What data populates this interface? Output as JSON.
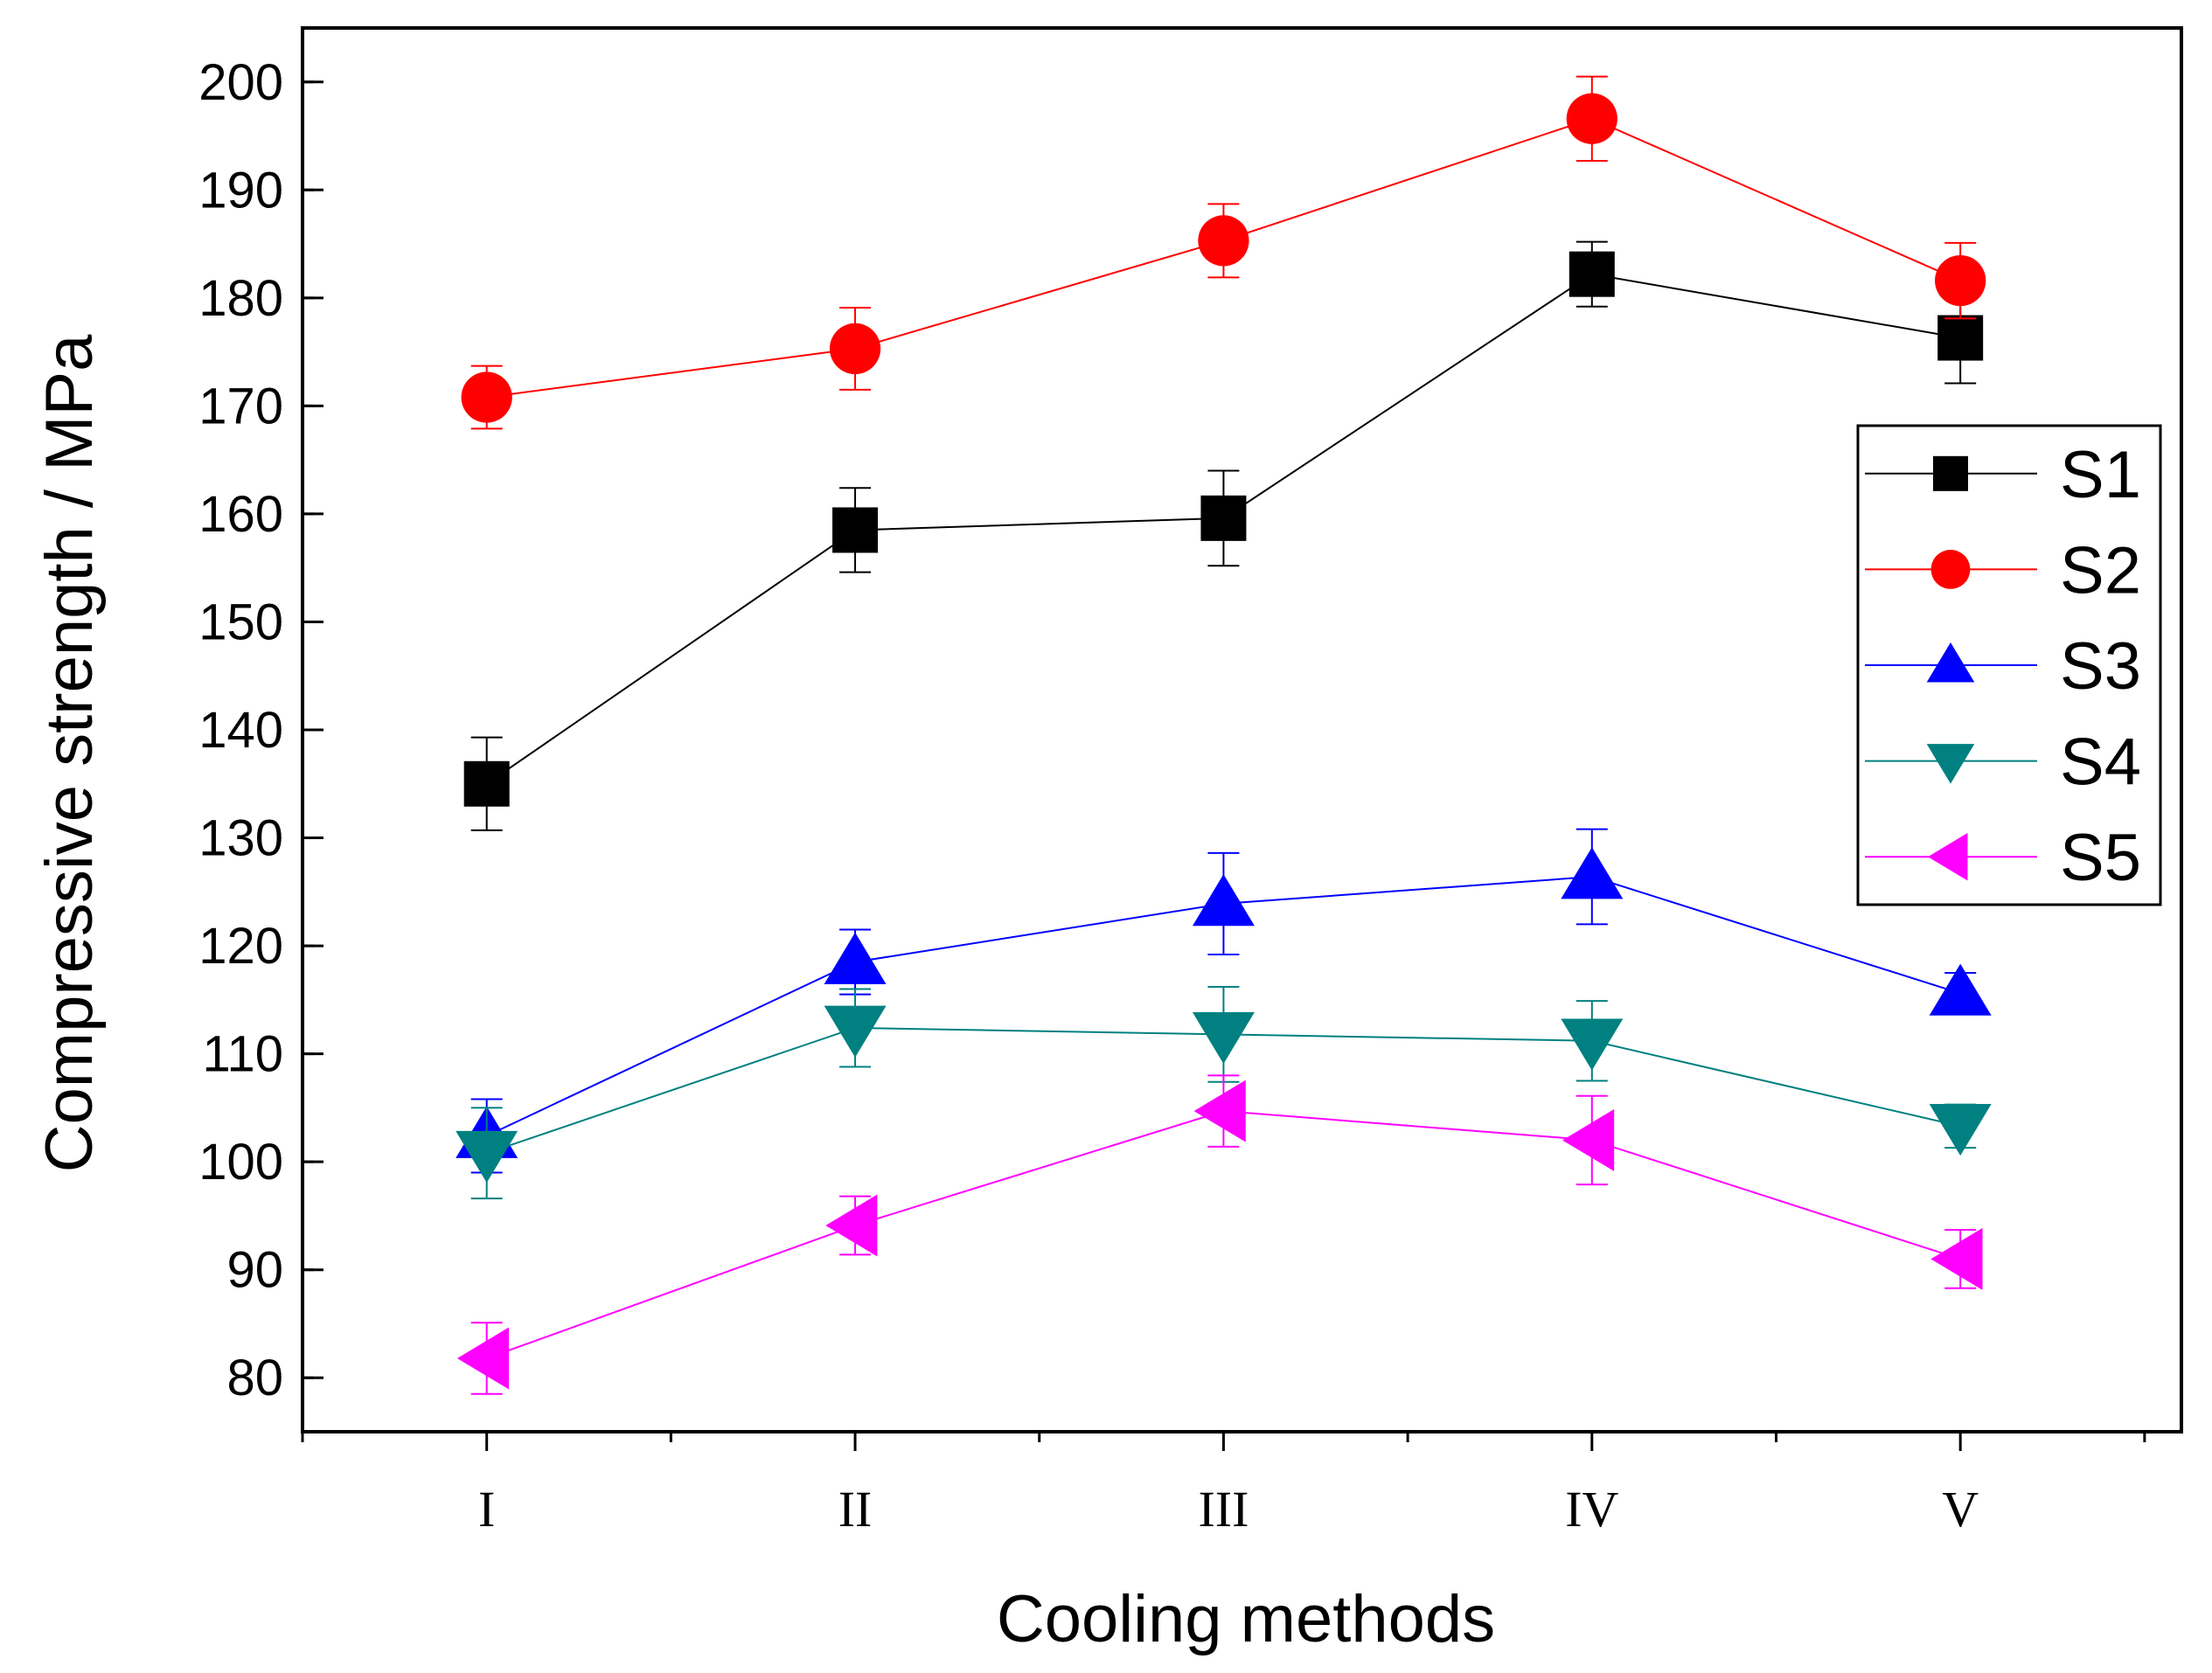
{
  "chart_data": {
    "type": "line",
    "title": "",
    "xlabel": "Cooling methods",
    "ylabel": "Compressive strength / MPa",
    "categories": [
      "I",
      "II",
      "III",
      "IV",
      "V"
    ],
    "ylim": [
      75,
      205
    ],
    "yticks": [
      80,
      90,
      100,
      110,
      120,
      130,
      140,
      150,
      160,
      170,
      180,
      190,
      200
    ],
    "grid": false,
    "legend_position": "right",
    "series": [
      {
        "name": "S1",
        "color": "#000000",
        "marker": "square",
        "values": [
          135.0,
          158.5,
          159.6,
          182.2,
          176.3
        ],
        "errors": [
          4.3,
          3.9,
          4.4,
          3.0,
          4.2
        ]
      },
      {
        "name": "S2",
        "color": "#ff0000",
        "marker": "circle",
        "values": [
          170.8,
          175.3,
          185.3,
          196.6,
          181.6
        ],
        "errors": [
          2.9,
          3.8,
          3.4,
          3.9,
          3.5
        ]
      },
      {
        "name": "S3",
        "color": "#0000ff",
        "marker": "triangle-up",
        "values": [
          102.4,
          118.5,
          123.9,
          126.4,
          115.6
        ],
        "errors": [
          3.4,
          3.0,
          4.7,
          4.4,
          1.9
        ]
      },
      {
        "name": "S4",
        "color": "#008080",
        "marker": "triangle-down",
        "values": [
          100.8,
          112.4,
          111.8,
          111.2,
          103.3
        ],
        "errors": [
          4.2,
          3.6,
          4.4,
          3.7,
          2.0
        ]
      },
      {
        "name": "S5",
        "color": "#ff00ff",
        "marker": "triangle-left",
        "values": [
          81.8,
          94.1,
          104.7,
          102.0,
          91.0
        ],
        "errors": [
          3.3,
          2.7,
          3.3,
          4.1,
          2.7
        ]
      }
    ]
  }
}
